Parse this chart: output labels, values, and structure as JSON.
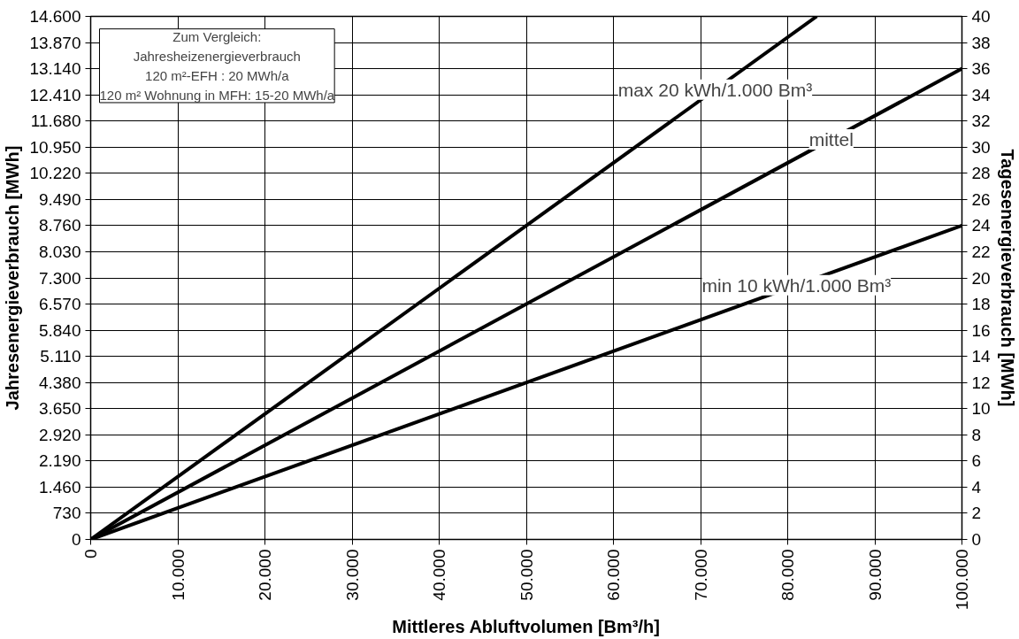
{
  "chart_data": {
    "type": "line",
    "xlabel": "Mittleres Abluftvolumen [Bm³/h]",
    "ylabel": "Jahresenergieverbrauch [MWh]",
    "y2label": "Tagesenergieverbrauch [MWh]",
    "annotations": [
      "Zum Vergleich:\nJahresheizenergieverbrauch\n120 m²-EFH : 20 MWh/a\n120 m² Wohnung in MFH: 15-20 MWh/a"
    ],
    "series": [
      {
        "name": "max 20 kWh/1.000 Bm³",
        "color": "#000000",
        "x": [
          0,
          83333
        ],
        "values": [
          0,
          14600
        ]
      },
      {
        "name": "mittel",
        "color": "#000000",
        "x": [
          0,
          100000
        ],
        "values": [
          0,
          13140
        ]
      },
      {
        "name": "min 10 kWh/1.000 Bm³",
        "color": "#000000",
        "x": [
          0,
          100000
        ],
        "values": [
          0,
          8760
        ]
      }
    ],
    "xlim": [
      0,
      100000
    ],
    "xticks": [
      0,
      {
        "value": 10000,
        "label": "10.000"
      },
      {
        "value": 20000,
        "label": "20.000"
      },
      {
        "value": 30000,
        "label": "30.000"
      },
      {
        "value": 40000,
        "label": "40.000"
      },
      {
        "value": 50000,
        "label": "50.000"
      },
      {
        "value": 60000,
        "label": "60.000"
      },
      {
        "value": 70000,
        "label": "70.000"
      },
      {
        "value": 80000,
        "label": "80.000"
      },
      {
        "value": 90000,
        "label": "90.000"
      },
      {
        "value": 100000,
        "label": "100.000"
      }
    ],
    "ylim": [
      0,
      14600
    ],
    "yticks": [
      0,
      730,
      {
        "value": 1460,
        "label": "1.460"
      },
      {
        "value": 2190,
        "label": "2.190"
      },
      {
        "value": 2920,
        "label": "2.920"
      },
      {
        "value": 3650,
        "label": "3.650"
      },
      {
        "value": 4380,
        "label": "4.380"
      },
      {
        "value": 5110,
        "label": "5.110"
      },
      {
        "value": 5840,
        "label": "5.840"
      },
      {
        "value": 6570,
        "label": "6.570"
      },
      {
        "value": 7300,
        "label": "7.300"
      },
      {
        "value": 8030,
        "label": "8.030"
      },
      {
        "value": 8760,
        "label": "8.760"
      },
      {
        "value": 9490,
        "label": "9.490"
      },
      {
        "value": 10220,
        "label": "10.220"
      },
      {
        "value": 10950,
        "label": "10.950"
      },
      {
        "value": 11680,
        "label": "11.680"
      },
      {
        "value": 12410,
        "label": "12.410"
      },
      {
        "value": 13140,
        "label": "13.140"
      },
      {
        "value": 13870,
        "label": "13.870"
      },
      {
        "value": 14600,
        "label": "14.600"
      }
    ],
    "y2lim": [
      0,
      40
    ],
    "y2ticks": [
      0,
      2,
      4,
      6,
      8,
      10,
      12,
      14,
      16,
      18,
      20,
      22,
      24,
      26,
      28,
      30,
      32,
      34,
      36,
      38,
      40
    ],
    "grid": true,
    "marker": "none",
    "line_style": "solid"
  }
}
